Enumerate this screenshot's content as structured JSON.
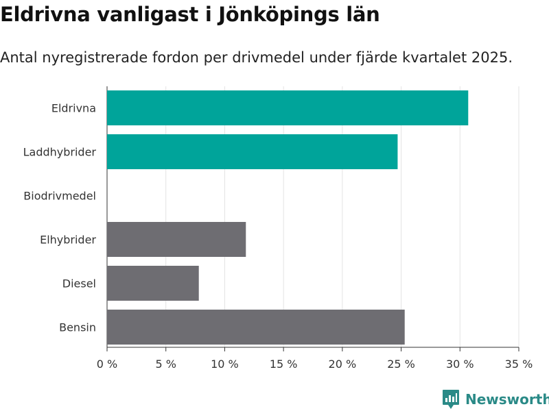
{
  "chart_data": {
    "type": "bar",
    "orientation": "horizontal",
    "title": "Eldrivna vanligast i Jönköpings län",
    "subtitle": "Antal nyregistrerade fordon per drivmedel under fjärde kvartalet 2025.",
    "categories": [
      "Eldrivna",
      "Laddhybrider",
      "Biodrivmedel",
      "Elhybrider",
      "Diesel",
      "Bensin"
    ],
    "values": [
      30.7,
      24.7,
      0,
      11.8,
      7.8,
      25.3
    ],
    "bar_colors": [
      "#00a49a",
      "#00a49a",
      "#6e6d72",
      "#6e6d72",
      "#6e6d72",
      "#6e6d72"
    ],
    "xlim": [
      0,
      35
    ],
    "xticks": [
      {
        "value": 0,
        "label": "0 %"
      },
      {
        "value": 5,
        "label": "5 %"
      },
      {
        "value": 10,
        "label": "10 %"
      },
      {
        "value": 15,
        "label": "15 %"
      },
      {
        "value": 20,
        "label": "20 %"
      },
      {
        "value": 25,
        "label": "25 %"
      },
      {
        "value": 30,
        "label": "30 %"
      },
      {
        "value": 35,
        "label": "35 %"
      }
    ],
    "grid": true,
    "xlabel": "",
    "ylabel": ""
  },
  "brand": {
    "name": "Newsworthy",
    "icon": "bar-chart-logo-icon",
    "color": "#2a8a87"
  }
}
